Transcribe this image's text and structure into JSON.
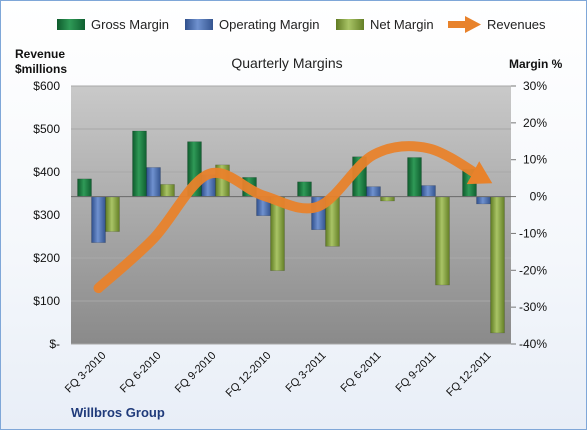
{
  "chart_data": {
    "type": "bar",
    "title": "Quarterly Margins",
    "company": "Willbros Group",
    "y_left_label_lines": [
      "Revenue",
      "$millions"
    ],
    "y_right_label": "Margin %",
    "y_left_range": [
      0,
      600
    ],
    "y_left_ticks": [
      "$-",
      "$100",
      "$200",
      "$300",
      "$400",
      "$500",
      "$600"
    ],
    "y_right_range": [
      -40,
      30
    ],
    "y_right_ticks": [
      "-40%",
      "-30%",
      "-20%",
      "-10%",
      "0%",
      "10%",
      "20%",
      "30%"
    ],
    "grid": true,
    "legend_position": "top",
    "categories": [
      "FQ 3-2010",
      "FQ 6-2010",
      "FQ 9-2010",
      "FQ 12-2010",
      "FQ 3-2011",
      "FQ 6-2011",
      "FQ 9-2011",
      "FQ 12-2011"
    ],
    "series": [
      {
        "name": "Gross Margin",
        "axis": "right",
        "kind": "bar",
        "color": "#1e7a42",
        "values": [
          4.8,
          17.8,
          14.9,
          5.2,
          4.0,
          10.8,
          10.6,
          7.4
        ]
      },
      {
        "name": "Operating Margin",
        "axis": "right",
        "kind": "bar",
        "color": "#4a6fb0",
        "values": [
          -12.5,
          7.9,
          5.9,
          -5.2,
          -9.0,
          2.7,
          3.0,
          -2.0
        ]
      },
      {
        "name": "Net Margin",
        "axis": "right",
        "kind": "bar",
        "color": "#8aa544",
        "values": [
          -9.5,
          3.3,
          8.6,
          -20.1,
          -13.5,
          -1.2,
          -24.0,
          -37.0
        ]
      },
      {
        "name": "Revenues",
        "axis": "left",
        "kind": "arrow-line",
        "color": "#e8822b",
        "values": [
          130,
          245,
          395,
          345,
          320,
          440,
          455,
          385
        ]
      }
    ]
  }
}
